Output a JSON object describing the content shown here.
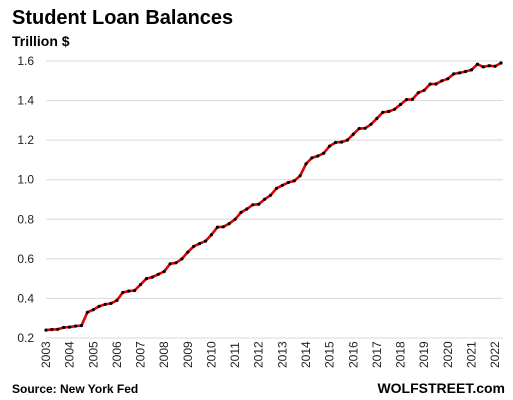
{
  "chart_data": {
    "type": "line",
    "title": "Student Loan Balances",
    "subtitle": "Trillion $",
    "xlabel": "",
    "ylabel": "",
    "ylim": [
      0.2,
      1.6
    ],
    "yticks": [
      "0.2",
      "0.4",
      "0.6",
      "0.8",
      "1.0",
      "1.2",
      "1.4",
      "1.6"
    ],
    "xticks": [
      "2003",
      "2004",
      "2005",
      "2006",
      "2007",
      "2008",
      "2009",
      "2010",
      "2011",
      "2012",
      "2013",
      "2014",
      "2015",
      "2016",
      "2017",
      "2018",
      "2019",
      "2020",
      "2021",
      "2022"
    ],
    "grid": "horizontal",
    "line_color": "#e00000",
    "marker_color": "#000000",
    "x": [
      "2003Q1",
      "2003Q2",
      "2003Q3",
      "2003Q4",
      "2004Q1",
      "2004Q2",
      "2004Q3",
      "2004Q4",
      "2005Q1",
      "2005Q2",
      "2005Q3",
      "2005Q4",
      "2006Q1",
      "2006Q2",
      "2006Q3",
      "2006Q4",
      "2007Q1",
      "2007Q2",
      "2007Q3",
      "2007Q4",
      "2008Q1",
      "2008Q2",
      "2008Q3",
      "2008Q4",
      "2009Q1",
      "2009Q2",
      "2009Q3",
      "2009Q4",
      "2010Q1",
      "2010Q2",
      "2010Q3",
      "2010Q4",
      "2011Q1",
      "2011Q2",
      "2011Q3",
      "2011Q4",
      "2012Q1",
      "2012Q2",
      "2012Q3",
      "2012Q4",
      "2013Q1",
      "2013Q2",
      "2013Q3",
      "2013Q4",
      "2014Q1",
      "2014Q2",
      "2014Q3",
      "2014Q4",
      "2015Q1",
      "2015Q2",
      "2015Q3",
      "2015Q4",
      "2016Q1",
      "2016Q2",
      "2016Q3",
      "2016Q4",
      "2017Q1",
      "2017Q2",
      "2017Q3",
      "2017Q4",
      "2018Q1",
      "2018Q2",
      "2018Q3",
      "2018Q4",
      "2019Q1",
      "2019Q2",
      "2019Q3",
      "2019Q4",
      "2020Q1",
      "2020Q2",
      "2020Q3",
      "2020Q4",
      "2021Q1",
      "2021Q2",
      "2021Q3",
      "2021Q4",
      "2022Q1",
      "2022Q2"
    ],
    "values": [
      0.24,
      0.243,
      0.244,
      0.253,
      0.255,
      0.26,
      0.263,
      0.33,
      0.343,
      0.36,
      0.37,
      0.375,
      0.39,
      0.43,
      0.437,
      0.44,
      0.47,
      0.5,
      0.508,
      0.522,
      0.536,
      0.575,
      0.58,
      0.6,
      0.634,
      0.663,
      0.677,
      0.69,
      0.722,
      0.76,
      0.762,
      0.778,
      0.8,
      0.835,
      0.852,
      0.873,
      0.876,
      0.901,
      0.921,
      0.956,
      0.972,
      0.986,
      0.994,
      1.02,
      1.08,
      1.11,
      1.12,
      1.134,
      1.17,
      1.188,
      1.19,
      1.2,
      1.23,
      1.259,
      1.26,
      1.28,
      1.31,
      1.34,
      1.345,
      1.356,
      1.38,
      1.405,
      1.406,
      1.44,
      1.452,
      1.483,
      1.484,
      1.5,
      1.51,
      1.535,
      1.54,
      1.547,
      1.555,
      1.584,
      1.57,
      1.576,
      1.573,
      1.59
    ]
  },
  "footer": {
    "source": "Source: New York Fed",
    "brand": "WOLFSTREET.com"
  }
}
